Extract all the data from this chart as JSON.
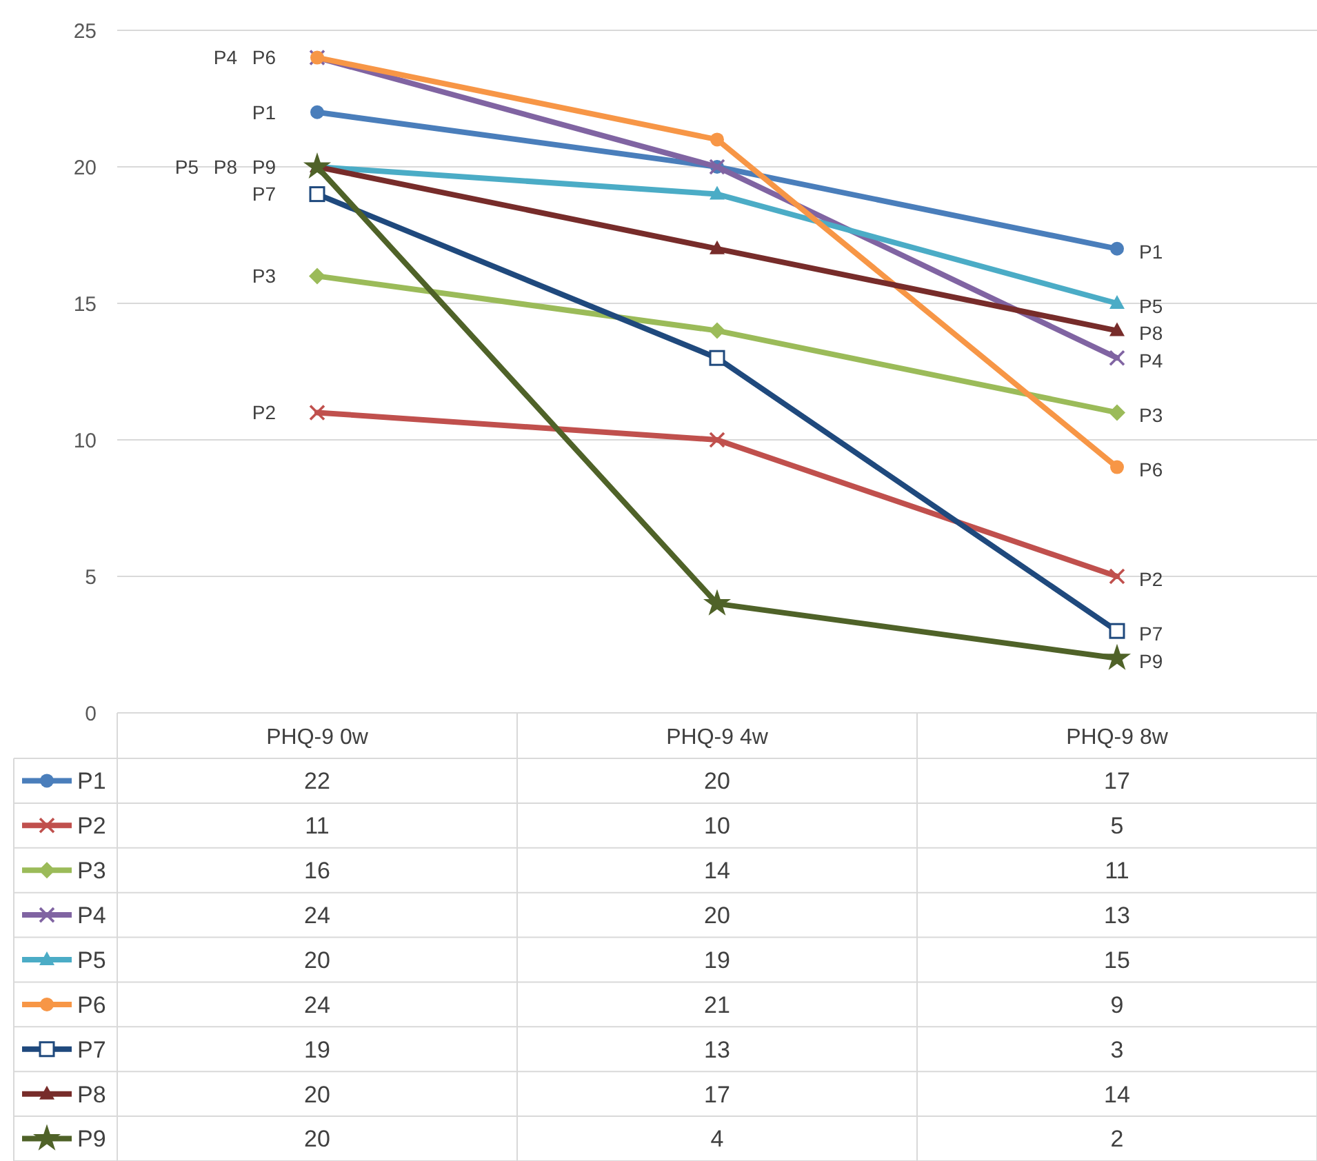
{
  "chart_data": {
    "type": "line",
    "categories": [
      "PHQ-9 0w",
      "PHQ-9 4w",
      "PHQ-9 8w"
    ],
    "ylim": [
      0,
      25
    ],
    "yticks": [
      0,
      5,
      10,
      15,
      20,
      25
    ],
    "grid": "y",
    "legend": "bottom",
    "data_labels": true,
    "series": [
      {
        "name": "P1",
        "color": "#4a7ebb",
        "marker": "circle",
        "values": [
          22,
          20,
          17
        ]
      },
      {
        "name": "P2",
        "color": "#c0504d",
        "marker": "cross",
        "values": [
          11,
          10,
          5
        ]
      },
      {
        "name": "P3",
        "color": "#9bbb59",
        "marker": "diamond",
        "values": [
          16,
          14,
          11
        ]
      },
      {
        "name": "P4",
        "color": "#8064a2",
        "marker": "cross",
        "values": [
          24,
          20,
          13
        ]
      },
      {
        "name": "P5",
        "color": "#4bacc6",
        "marker": "triangle",
        "values": [
          20,
          19,
          15
        ]
      },
      {
        "name": "P6",
        "color": "#f79646",
        "marker": "circle",
        "values": [
          24,
          21,
          9
        ]
      },
      {
        "name": "P7",
        "color": "#1f497d",
        "marker": "square",
        "values": [
          19,
          13,
          3
        ]
      },
      {
        "name": "P8",
        "color": "#772c2a",
        "marker": "triangle",
        "values": [
          20,
          17,
          14
        ]
      },
      {
        "name": "P9",
        "color": "#4f6228",
        "marker": "star",
        "values": [
          20,
          4,
          2
        ]
      }
    ]
  }
}
